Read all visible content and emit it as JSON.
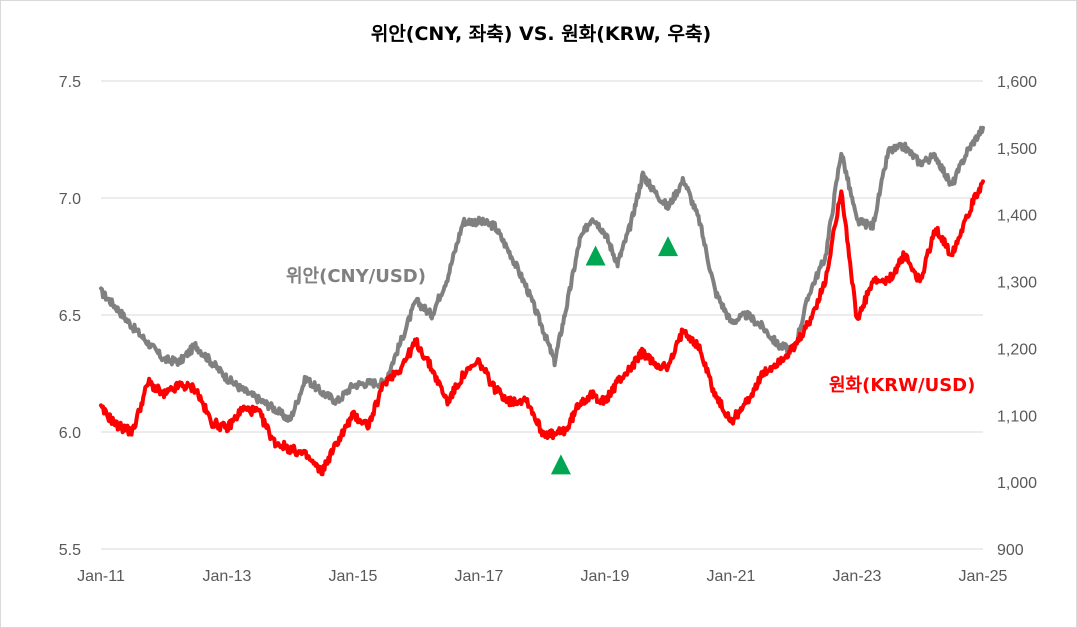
{
  "chart_data": {
    "type": "line",
    "title": "위안(CNY, 좌축) VS. 원화(KRW, 우축)",
    "x_ticks": [
      "Jan-11",
      "Jan-13",
      "Jan-15",
      "Jan-17",
      "Jan-19",
      "Jan-21",
      "Jan-23",
      "Jan-25"
    ],
    "x_range": [
      2011.0,
      2025.0
    ],
    "y_left": {
      "range": [
        5.5,
        7.5
      ],
      "ticks": [
        "5.5",
        "6.0",
        "6.5",
        "7.0",
        "7.5"
      ]
    },
    "y_right": {
      "range": [
        900,
        1600
      ],
      "ticks": [
        "900",
        "1,000",
        "1,100",
        "1,200",
        "1,300",
        "1,400",
        "1,500",
        "1,600"
      ]
    },
    "grid": true,
    "colors": {
      "cny": "#808080",
      "krw": "#ff0000",
      "marker": "#00a651",
      "grid": "#d9d9d9"
    },
    "series": [
      {
        "name": "위안(CNY/USD)",
        "axis": "left",
        "x": [
          2011.0,
          2011.25,
          2011.5,
          2011.75,
          2012.0,
          2012.25,
          2012.5,
          2012.75,
          2013.0,
          2013.25,
          2013.5,
          2013.75,
          2014.0,
          2014.25,
          2014.5,
          2014.75,
          2015.0,
          2015.25,
          2015.5,
          2015.75,
          2016.0,
          2016.25,
          2016.5,
          2016.75,
          2017.0,
          2017.25,
          2017.5,
          2017.75,
          2018.0,
          2018.2,
          2018.4,
          2018.6,
          2018.8,
          2019.0,
          2019.2,
          2019.4,
          2019.6,
          2019.75,
          2020.0,
          2020.25,
          2020.5,
          2020.75,
          2021.0,
          2021.25,
          2021.5,
          2021.75,
          2022.0,
          2022.25,
          2022.5,
          2022.75,
          2023.0,
          2023.25,
          2023.5,
          2023.75,
          2024.0,
          2024.25,
          2024.5,
          2024.75,
          2025.0
        ],
        "values": [
          6.6,
          6.53,
          6.45,
          6.38,
          6.31,
          6.3,
          6.37,
          6.3,
          6.23,
          6.18,
          6.14,
          6.1,
          6.05,
          6.23,
          6.17,
          6.13,
          6.2,
          6.21,
          6.21,
          6.38,
          6.56,
          6.5,
          6.66,
          6.9,
          6.9,
          6.88,
          6.76,
          6.62,
          6.45,
          6.3,
          6.55,
          6.82,
          6.92,
          6.85,
          6.72,
          6.88,
          7.1,
          7.04,
          6.96,
          7.08,
          6.9,
          6.6,
          6.47,
          6.5,
          6.45,
          6.37,
          6.35,
          6.6,
          6.75,
          7.2,
          6.9,
          6.88,
          7.2,
          7.22,
          7.15,
          7.18,
          7.05,
          7.2,
          7.3
        ]
      },
      {
        "name": "원화(KRW/USD)",
        "axis": "right",
        "x": [
          2011.0,
          2011.25,
          2011.5,
          2011.75,
          2012.0,
          2012.25,
          2012.5,
          2012.75,
          2013.0,
          2013.25,
          2013.5,
          2013.75,
          2014.0,
          2014.25,
          2014.5,
          2014.75,
          2015.0,
          2015.25,
          2015.5,
          2015.75,
          2016.0,
          2016.25,
          2016.5,
          2016.75,
          2017.0,
          2017.25,
          2017.5,
          2017.75,
          2018.0,
          2018.2,
          2018.4,
          2018.6,
          2018.8,
          2019.0,
          2019.2,
          2019.4,
          2019.6,
          2019.75,
          2020.0,
          2020.25,
          2020.5,
          2020.75,
          2021.0,
          2021.25,
          2021.5,
          2021.75,
          2022.0,
          2022.25,
          2022.5,
          2022.75,
          2023.0,
          2023.25,
          2023.5,
          2023.75,
          2024.0,
          2024.25,
          2024.5,
          2024.75,
          2025.0
        ],
        "values": [
          1110,
          1085,
          1075,
          1150,
          1130,
          1145,
          1140,
          1090,
          1080,
          1110,
          1105,
          1060,
          1050,
          1040,
          1015,
          1060,
          1100,
          1085,
          1150,
          1170,
          1210,
          1170,
          1120,
          1160,
          1180,
          1140,
          1120,
          1125,
          1075,
          1070,
          1080,
          1120,
          1130,
          1120,
          1150,
          1170,
          1195,
          1180,
          1170,
          1230,
          1200,
          1130,
          1090,
          1120,
          1160,
          1180,
          1200,
          1240,
          1300,
          1440,
          1240,
          1300,
          1300,
          1340,
          1300,
          1380,
          1340,
          1400,
          1450
        ]
      }
    ],
    "markers": [
      {
        "x": 2018.3,
        "y": 1025,
        "axis": "right"
      },
      {
        "x": 2018.85,
        "y": 6.75,
        "axis": "left"
      },
      {
        "x": 2020.0,
        "y": 6.79,
        "axis": "left"
      }
    ]
  }
}
